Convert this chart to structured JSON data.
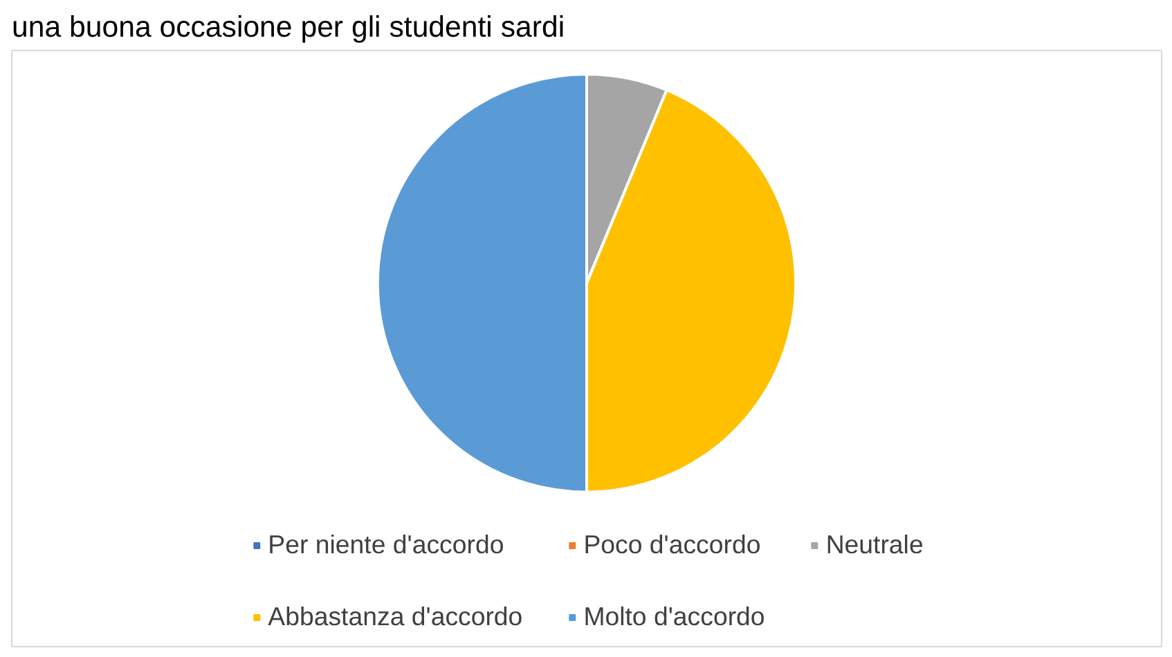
{
  "chart_data": {
    "type": "pie",
    "title": "una buona occasione per gli studenti sardi",
    "categories": [
      "Per niente d'accordo",
      "Poco d'accordo",
      "Neutrale",
      "Abbastanza d'accordo",
      "Molto d'accordo"
    ],
    "values": [
      0,
      0,
      6.25,
      43.75,
      50
    ],
    "colors": [
      "#4472c4",
      "#ed7d31",
      "#a5a5a5",
      "#ffc000",
      "#5b9bd5"
    ],
    "legend": "bottom"
  }
}
